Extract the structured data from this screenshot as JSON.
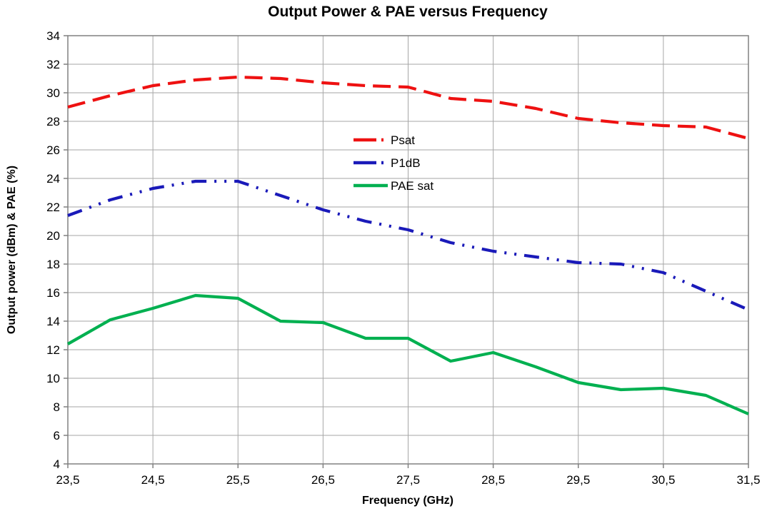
{
  "chart_data": {
    "type": "line",
    "title": "Output Power & PAE versus Frequency",
    "xlabel": "Frequency (GHz)",
    "ylabel": "Output power (dBm) & PAE (%)",
    "xlim": [
      23.5,
      31.5
    ],
    "ylim": [
      4,
      34
    ],
    "grid": true,
    "legend_position": "inside-upper-middle",
    "x": [
      23.5,
      24.0,
      24.5,
      25.0,
      25.5,
      26.0,
      26.5,
      27.0,
      27.5,
      28.0,
      28.5,
      29.0,
      29.5,
      30.0,
      30.5,
      31.0,
      31.5
    ],
    "xtick_labels": [
      "23,5",
      "24,5",
      "25,5",
      "26,5",
      "27,5",
      "28,5",
      "29,5",
      "30,5",
      "31,5"
    ],
    "xtick_values": [
      23.5,
      24.5,
      25.5,
      26.5,
      27.5,
      28.5,
      29.5,
      30.5,
      31.5
    ],
    "ytick_labels": [
      "4",
      "6",
      "8",
      "10",
      "12",
      "14",
      "16",
      "18",
      "20",
      "22",
      "24",
      "26",
      "28",
      "30",
      "32",
      "34"
    ],
    "ytick_values": [
      4,
      6,
      8,
      10,
      12,
      14,
      16,
      18,
      20,
      22,
      24,
      26,
      28,
      30,
      32,
      34
    ],
    "series": [
      {
        "name": "Psat",
        "color": "#ee1111",
        "style": "dash",
        "values": [
          29.0,
          29.8,
          30.5,
          30.9,
          31.1,
          31.0,
          30.7,
          30.5,
          30.4,
          29.6,
          29.4,
          28.9,
          28.2,
          27.9,
          27.7,
          27.6,
          26.8
        ]
      },
      {
        "name": "P1dB",
        "color": "#1a1ab9",
        "style": "dash-dot-dot",
        "values": [
          21.4,
          22.5,
          23.3,
          23.8,
          23.8,
          22.8,
          21.8,
          21.0,
          20.4,
          19.5,
          18.9,
          18.5,
          18.1,
          18.0,
          17.4,
          16.1,
          14.8
        ]
      },
      {
        "name": "PAE sat",
        "color": "#00b050",
        "style": "solid",
        "values": [
          12.4,
          14.1,
          14.9,
          15.8,
          15.6,
          14.0,
          13.9,
          12.8,
          12.8,
          11.2,
          11.8,
          10.8,
          9.7,
          9.2,
          9.3,
          8.8,
          7.5
        ]
      }
    ],
    "colors": {
      "gridline": "#a6a6a6",
      "plot_border": "#808080",
      "background": "#ffffff",
      "text": "#000000"
    }
  }
}
